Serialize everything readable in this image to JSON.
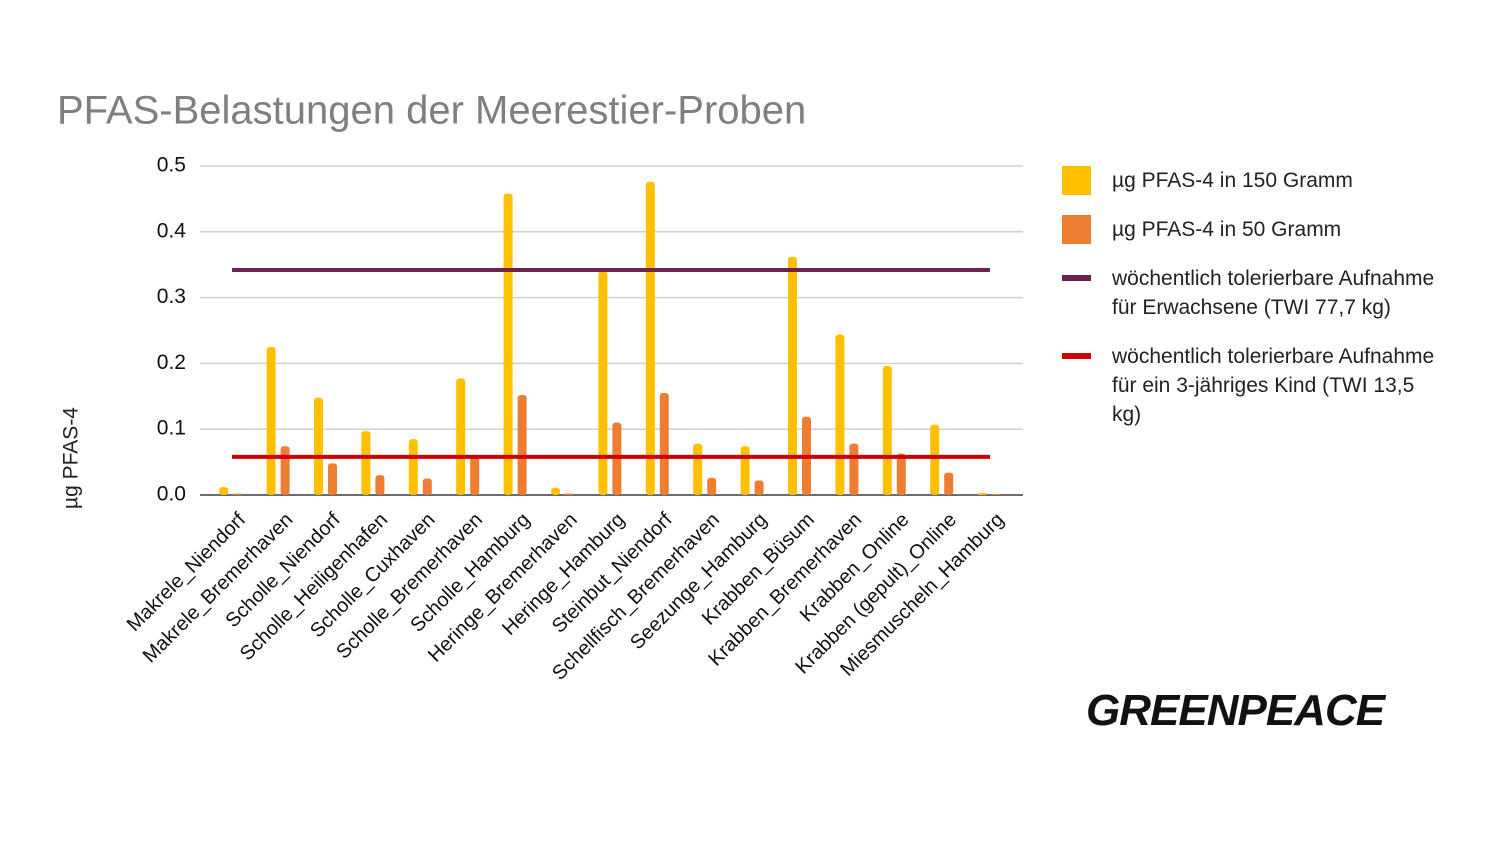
{
  "chart_data": {
    "type": "bar",
    "title": "PFAS-Belastungen der Meerestier-Proben",
    "y_label": "µg PFAS-4",
    "categories": [
      "Makrele_Niendorf",
      "Makrele_Bremerhaven",
      "Scholle_Niendorf",
      "Scholle_Heiligenhafen",
      "Scholle_Cuxhaven",
      "Scholle_Bremerhaven",
      "Scholle_Hamburg",
      "Heringe_Bremerhaven",
      "Heringe_Hamburg",
      "Steinbut_Niendorf",
      "Schellfisch_Bremerhaven",
      "Seezunge_Hamburg",
      "Krabben_Büsum",
      "Krabben_Bremerhaven",
      "Krabben_Online",
      "Krabben (gepult)_Online",
      "Miesmuscheln_Hamburg"
    ],
    "series": [
      {
        "name": "µg PFAS-4 in 150 Gramm",
        "color": "#ffc000",
        "values": [
          0.012,
          0.225,
          0.148,
          0.097,
          0.085,
          0.177,
          0.458,
          0.011,
          0.34,
          0.476,
          0.078,
          0.074,
          0.362,
          0.244,
          0.196,
          0.107,
          0.003
        ]
      },
      {
        "name": "µg PFAS-4 in 50 Gramm",
        "color": "#ed7d31",
        "values": [
          0.002,
          0.074,
          0.048,
          0.03,
          0.025,
          0.059,
          0.152,
          0.002,
          0.11,
          0.155,
          0.026,
          0.022,
          0.119,
          0.078,
          0.063,
          0.034,
          0.001
        ]
      }
    ],
    "reference_lines": [
      {
        "name": "wöchentlich tolerierbare Aufnahme für Erwachsene (TWI 77,7 kg)",
        "color": "#70204f",
        "value": 0.342
      },
      {
        "name": "wöchentlich tolerierbare Aufnahme für ein 3-jähriges Kind (TWI 13,5 kg)",
        "color": "#d00000",
        "value": 0.058
      }
    ],
    "ylim": [
      0,
      0.5
    ],
    "yticks": [
      {
        "value": 0,
        "label": "0.0"
      },
      0.1,
      0.2,
      0.3,
      0.4,
      0.5
    ],
    "grid": true,
    "legend": "right"
  },
  "logo": "GREENPEACE"
}
